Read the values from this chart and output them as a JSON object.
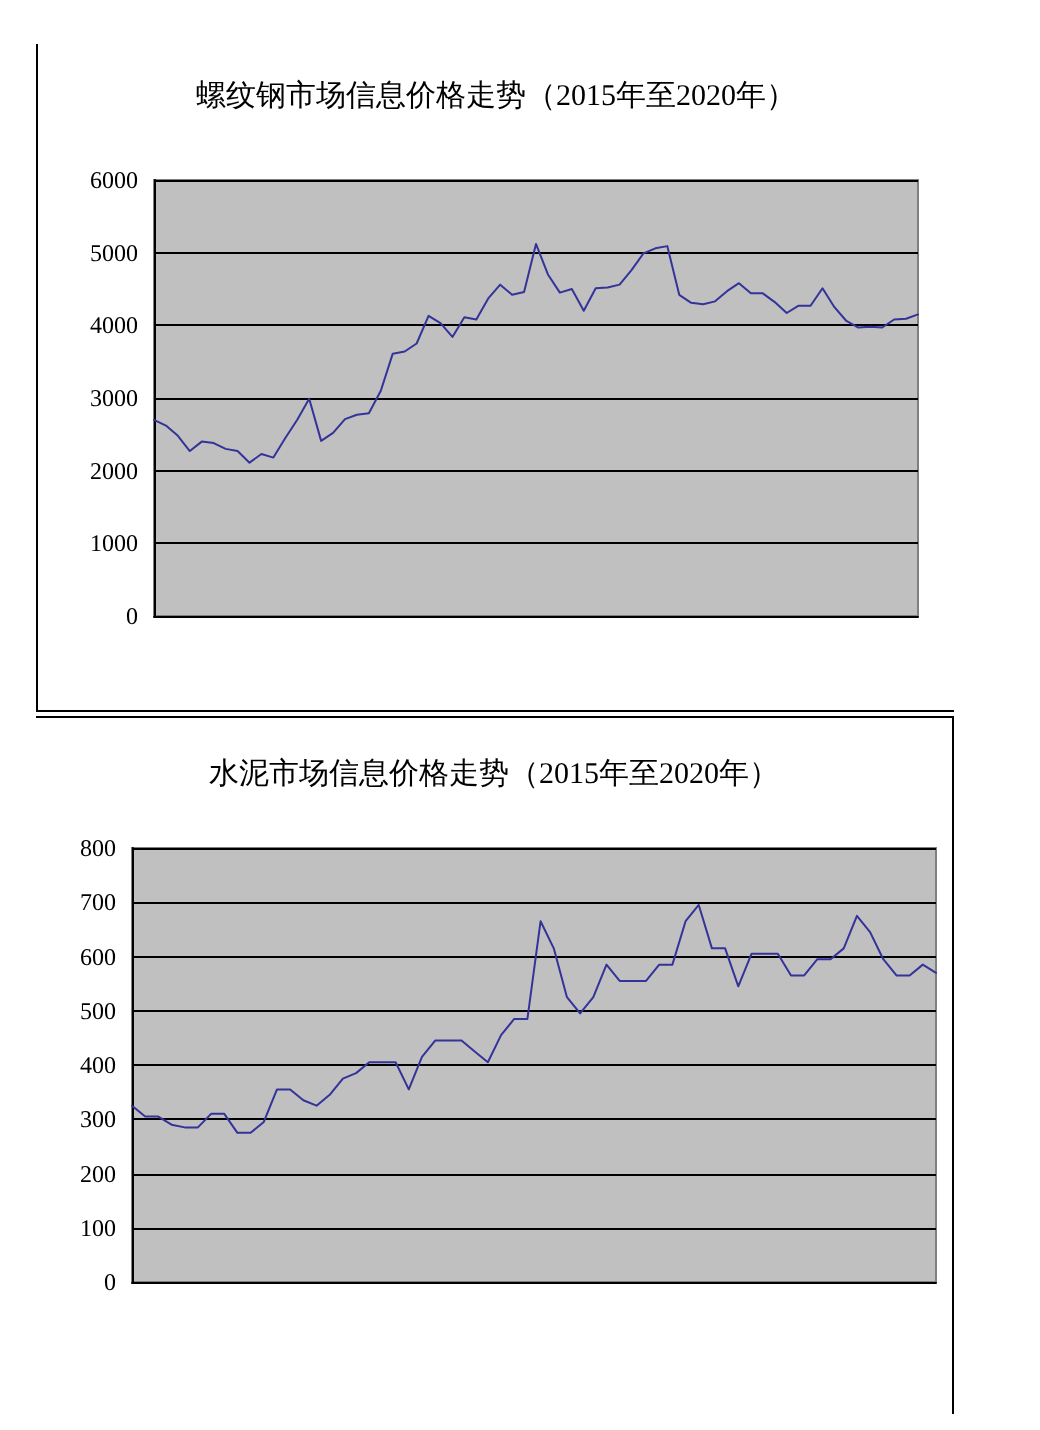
{
  "chart_data": [
    {
      "type": "line",
      "title": "螺纹钢市场信息价格走势（2015年至2020年）",
      "categories": [
        null,
        null,
        null,
        null,
        null,
        null,
        null,
        null,
        null,
        null,
        null,
        null,
        null,
        null,
        null,
        null,
        null,
        null,
        null,
        null,
        null,
        null,
        null,
        null,
        null,
        null,
        null,
        null,
        null,
        null,
        null,
        null,
        null,
        null,
        null,
        null,
        null,
        null,
        null,
        null,
        null,
        null,
        null,
        null,
        null,
        null,
        null,
        null,
        null,
        null,
        null,
        null,
        null,
        null,
        null,
        null,
        null,
        null,
        null,
        null,
        null,
        null,
        null,
        null,
        null
      ],
      "values": [
        2700,
        2620,
        2480,
        2270,
        2400,
        2380,
        2300,
        2270,
        2110,
        2230,
        2180,
        2450,
        2700,
        2990,
        2410,
        2520,
        2710,
        2770,
        2790,
        3100,
        3610,
        3640,
        3750,
        4130,
        4030,
        3840,
        4110,
        4080,
        4370,
        4560,
        4420,
        4460,
        5120,
        4700,
        4450,
        4500,
        4200,
        4510,
        4520,
        4560,
        4760,
        4990,
        5060,
        5090,
        4420,
        4310,
        4290,
        4330,
        4470,
        4580,
        4440,
        4440,
        4320,
        4170,
        4270,
        4270,
        4510,
        4250,
        4060,
        3970,
        3980,
        3970,
        4080,
        4090,
        4150
      ],
      "color": "#333399",
      "ylim": [
        0,
        6000
      ],
      "yticks": [
        0,
        1000,
        2000,
        3000,
        4000,
        5000,
        6000
      ],
      "grid": "y",
      "tick_labels": "y",
      "line_style": "solid"
    },
    {
      "type": "line",
      "title": "水泥市场信息价格走势（2015年至2020年）",
      "categories": [
        null,
        null,
        null,
        null,
        null,
        null,
        null,
        null,
        null,
        null,
        null,
        null,
        null,
        null,
        null,
        null,
        null,
        null,
        null,
        null,
        null,
        null,
        null,
        null,
        null,
        null,
        null,
        null,
        null,
        null,
        null,
        null,
        null,
        null,
        null,
        null,
        null,
        null,
        null,
        null,
        null,
        null,
        null,
        null,
        null,
        null,
        null,
        null,
        null,
        null,
        null,
        null,
        null,
        null,
        null,
        null,
        null,
        null,
        null,
        null,
        null,
        null
      ],
      "values": [
        325,
        305,
        305,
        290,
        285,
        285,
        310,
        310,
        275,
        275,
        295,
        355,
        355,
        335,
        325,
        345,
        375,
        385,
        405,
        405,
        405,
        355,
        415,
        445,
        445,
        445,
        425,
        405,
        455,
        485,
        485,
        665,
        615,
        525,
        495,
        525,
        585,
        555,
        555,
        555,
        585,
        585,
        665,
        695,
        615,
        615,
        545,
        605,
        605,
        605,
        565,
        565,
        595,
        595,
        615,
        675,
        645,
        595,
        565,
        565,
        585,
        570
      ],
      "color": "#333399",
      "ylim": [
        0,
        800
      ],
      "yticks": [
        0,
        100,
        200,
        300,
        400,
        500,
        600,
        700,
        800
      ],
      "grid": "y",
      "tick_labels": "y",
      "line_style": "solid"
    }
  ]
}
